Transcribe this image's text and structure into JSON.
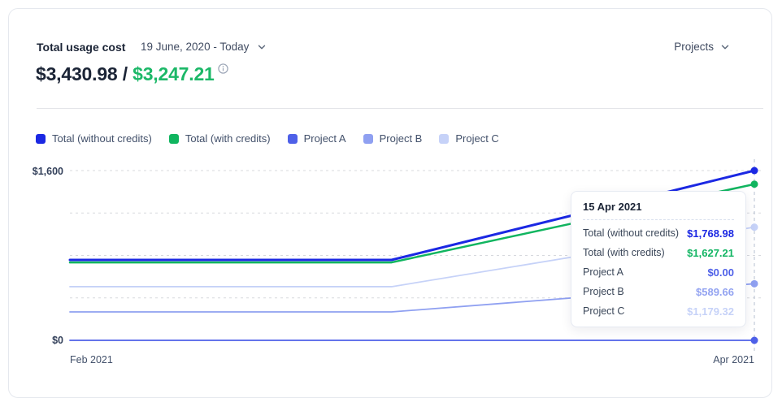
{
  "header": {
    "title": "Total usage cost",
    "date_range": "19 June, 2020 - Today",
    "scope_selector": "Projects"
  },
  "summary": {
    "total_without_credits": "$3,430.98",
    "separator": " / ",
    "total_with_credits": "$3,247.21"
  },
  "colors": {
    "total_without_credits": "#1b28e3",
    "total_with_credits": "#10b55f",
    "project_a": "#4e60e8",
    "project_b": "#8fa0f1",
    "project_c": "#c6d2f8",
    "amount_green": "#1cb868"
  },
  "chart_data": {
    "type": "line",
    "title": "Total usage cost",
    "xlabel": "",
    "ylabel": "",
    "x_tick_labels": [
      "Feb 2021",
      "Apr 2021"
    ],
    "y_tick_labels": [
      "$1,600",
      "$0"
    ],
    "ylim": [
      0,
      1768.98
    ],
    "grid": true,
    "legend_position": "top",
    "hover_x_label": "15 Apr 2021",
    "series": [
      {
        "name": "Total (without credits)",
        "color": "#1b28e3",
        "stroke_width": 3,
        "points": [
          [
            0,
            838
          ],
          [
            0.47,
            838
          ],
          [
            1,
            1768.98
          ]
        ]
      },
      {
        "name": "Total (with credits)",
        "color": "#10b55f",
        "stroke_width": 2.5,
        "points": [
          [
            0,
            812
          ],
          [
            0.47,
            812
          ],
          [
            1,
            1627.21
          ]
        ]
      },
      {
        "name": "Project A",
        "color": "#4e60e8",
        "stroke_width": 1.8,
        "points": [
          [
            0,
            0
          ],
          [
            0.47,
            0
          ],
          [
            1,
            0
          ]
        ]
      },
      {
        "name": "Project B",
        "color": "#8fa0f1",
        "stroke_width": 1.8,
        "points": [
          [
            0,
            296
          ],
          [
            0.47,
            296
          ],
          [
            1,
            589.66
          ]
        ]
      },
      {
        "name": "Project C",
        "color": "#c6d2f8",
        "stroke_width": 1.8,
        "points": [
          [
            0,
            559
          ],
          [
            0.47,
            559
          ],
          [
            1,
            1179.32
          ]
        ]
      }
    ]
  },
  "tooltip": {
    "title": "15 Apr 2021",
    "rows": [
      {
        "label": "Total (without credits)",
        "value": "$1,768.98",
        "color": "#1b28e3"
      },
      {
        "label": "Total (with credits)",
        "value": "$1,627.21",
        "color": "#12b563"
      },
      {
        "label": "Project A",
        "value": "$0.00",
        "color": "#4e60e8"
      },
      {
        "label": "Project B",
        "value": "$589.66",
        "color": "#93a3f1"
      },
      {
        "label": "Project C",
        "value": "$1,179.32",
        "color": "#c6d2f8"
      }
    ]
  }
}
